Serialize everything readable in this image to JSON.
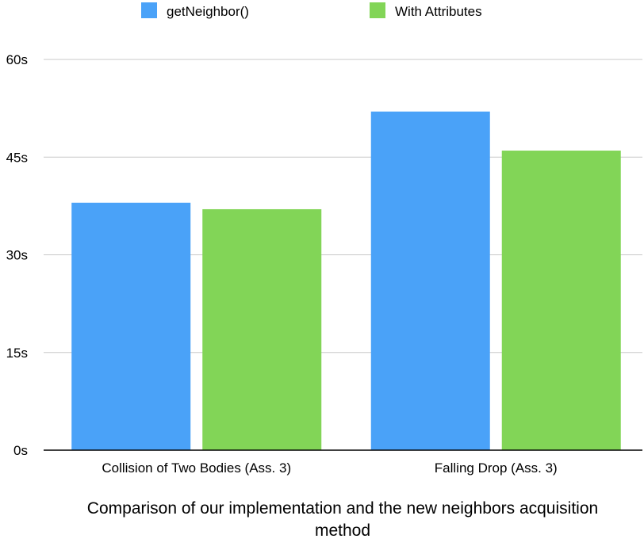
{
  "chart_data": {
    "type": "bar",
    "title": "Comparison of our implementation and the new neighbors acquisition method",
    "title_lines": [
      "Comparison of our implementation and the new neighbors acquisition",
      "method"
    ],
    "categories": [
      "Collision of Two Bodies (Ass. 3)",
      "Falling Drop (Ass. 3)"
    ],
    "series": [
      {
        "name": "getNeighbor()",
        "color": "#4aa2f8",
        "values": [
          38,
          52
        ]
      },
      {
        "name": "With Attributes",
        "color": "#82d557",
        "values": [
          37,
          46
        ]
      }
    ],
    "ylim": [
      0,
      60
    ],
    "yticks": [
      0,
      15,
      30,
      45,
      60
    ],
    "ytick_labels": [
      "0s",
      "15s",
      "30s",
      "45s",
      "60s"
    ],
    "grid": true,
    "legend_position": "top-center"
  }
}
